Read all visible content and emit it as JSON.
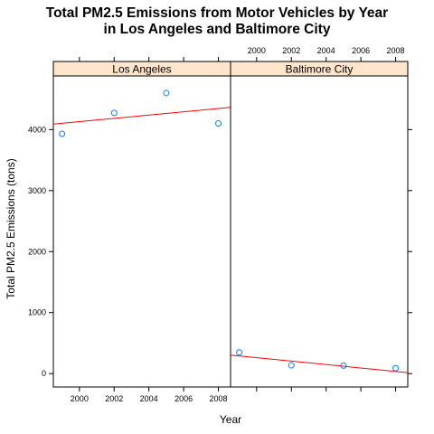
{
  "chart_data": {
    "type": "scatter",
    "title_lines": [
      "Total PM2.5 Emissions from Motor Vehicles by Year",
      "in Los Angeles and Baltimore City"
    ],
    "xlabel": "Year",
    "ylabel": "Total PM2.5 Emissions (tons)",
    "xlim": [
      1998.5,
      2008.7
    ],
    "ylim": [
      -220,
      4880
    ],
    "x_ticks": [
      2000,
      2002,
      2004,
      2006,
      2008
    ],
    "y_ticks": [
      0,
      1000,
      2000,
      3000,
      4000
    ],
    "grid": false,
    "point_color": "#0080ff",
    "fit_line_color": "#ff0000",
    "strip_color": "#ffe5cc",
    "panels": [
      {
        "name": "Los Angeles",
        "x": [
          1999,
          2002,
          2005,
          2008
        ],
        "y": [
          3931,
          4274,
          4601,
          4101
        ],
        "fit_line": {
          "x": [
            1998.5,
            2008.7
          ],
          "y": [
            4090,
            4365
          ]
        }
      },
      {
        "name": "Baltimore City",
        "x": [
          1999,
          2002,
          2005,
          2008
        ],
        "y": [
          347,
          135,
          130,
          88
        ],
        "fit_line": {
          "x": [
            1998.5,
            2008.7
          ],
          "y": [
            302,
            16
          ]
        }
      }
    ]
  }
}
